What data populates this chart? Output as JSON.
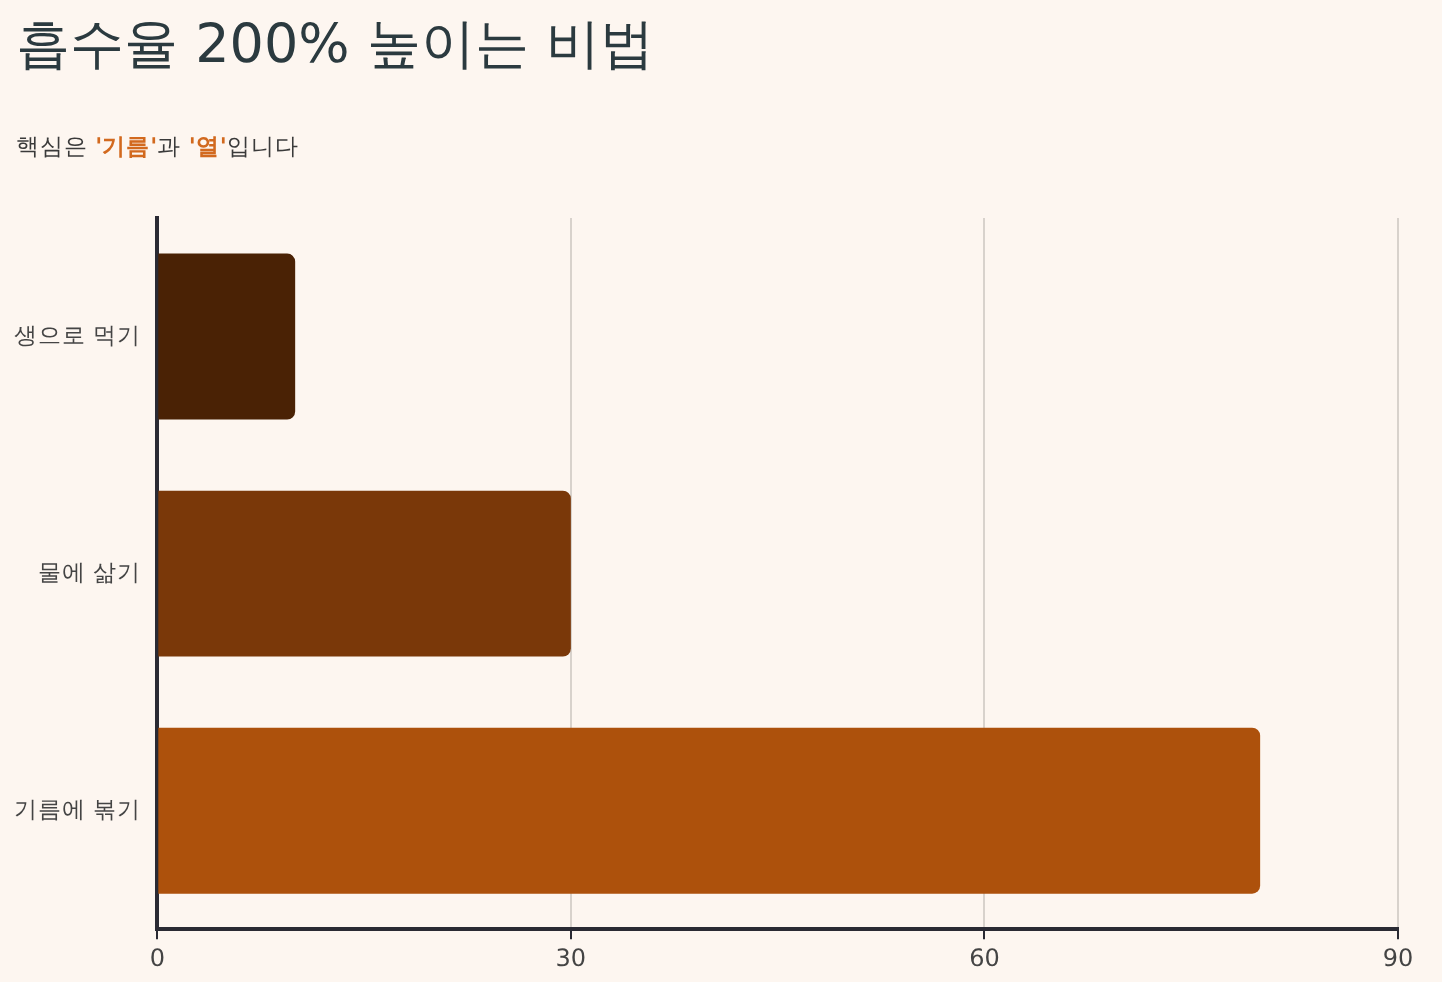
{
  "chart_data": {
    "type": "bar",
    "title": "흡수율 200% 높이는 비법",
    "subtitle": "핵심은 '기름'과 '열'입니다",
    "orientation": "horizontal",
    "categories": [
      "생으로 먹기",
      "물에 삶기",
      "기름에 볶기"
    ],
    "values": [
      10,
      30,
      80
    ],
    "colors": [
      "#4a2205",
      "#7a3809",
      "#ad510c"
    ],
    "xlim": [
      0,
      90
    ],
    "xticks": [
      0,
      30,
      60,
      90
    ],
    "grid": "x"
  }
}
